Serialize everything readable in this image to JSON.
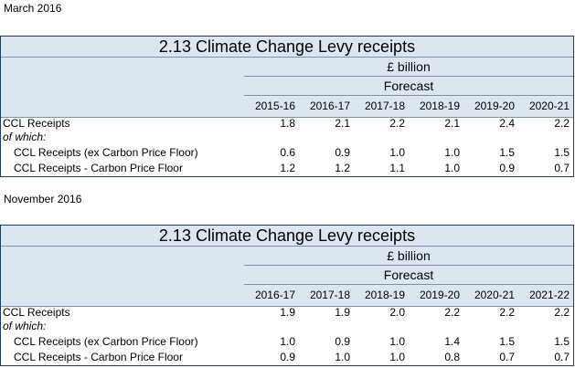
{
  "tables": [
    {
      "period": "March 2016",
      "title": "2.13 Climate Change Levy receipts",
      "unit": "£ billion",
      "forecast_label": "Forecast",
      "years": [
        "2015-16",
        "2016-17",
        "2017-18",
        "2018-19",
        "2019-20",
        "2020-21"
      ],
      "rows": [
        {
          "label": "CCL Receipts",
          "values": [
            "1.8",
            "2.1",
            "2.2",
            "2.1",
            "2.4",
            "2.2"
          ]
        },
        {
          "label": "of which:",
          "values": []
        },
        {
          "label": "CCL Receipts (ex Carbon Price Floor)",
          "values": [
            "0.6",
            "0.9",
            "1.0",
            "1.0",
            "1.5",
            "1.5"
          ]
        },
        {
          "label": "CCL Receipts - Carbon Price Floor",
          "values": [
            "1.2",
            "1.2",
            "1.1",
            "1.0",
            "0.9",
            "0.7"
          ]
        }
      ]
    },
    {
      "period": "November 2016",
      "title": "2.13 Climate Change Levy receipts",
      "unit": "£ billion",
      "forecast_label": "Forecast",
      "years": [
        "2016-17",
        "2017-18",
        "2018-19",
        "2019-20",
        "2020-21",
        "2021-22"
      ],
      "rows": [
        {
          "label": "CCL Receipts",
          "values": [
            "1.9",
            "1.9",
            "2.0",
            "2.2",
            "2.2",
            "2.2"
          ]
        },
        {
          "label": "of which:",
          "values": []
        },
        {
          "label": "CCL Receipts (ex Carbon Price Floor)",
          "values": [
            "1.0",
            "0.9",
            "1.0",
            "1.4",
            "1.5",
            "1.5"
          ]
        },
        {
          "label": "CCL Receipts - Carbon Price Floor",
          "values": [
            "0.9",
            "1.0",
            "1.0",
            "0.8",
            "0.7",
            "0.7"
          ]
        }
      ]
    }
  ]
}
